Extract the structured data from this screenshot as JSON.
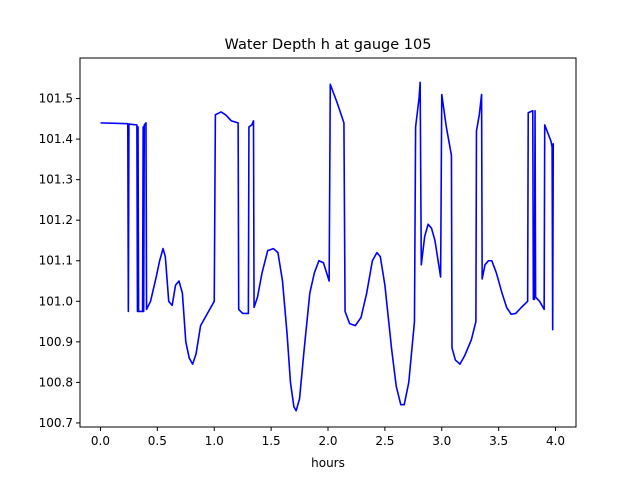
{
  "chart_data": {
    "type": "line",
    "title": "Water Depth h at gauge 105",
    "xlabel": "hours",
    "ylabel": "",
    "xlim": [
      -0.18,
      4.18
    ],
    "ylim": [
      100.69,
      101.6
    ],
    "xticks": [
      0.0,
      0.5,
      1.0,
      1.5,
      2.0,
      2.5,
      3.0,
      3.5,
      4.0
    ],
    "xtick_labels": [
      "0.0",
      "0.5",
      "1.0",
      "1.5",
      "2.0",
      "2.5",
      "3.0",
      "3.5",
      "4.0"
    ],
    "yticks": [
      100.7,
      100.8,
      100.9,
      101.0,
      101.1,
      101.2,
      101.3,
      101.4,
      101.5
    ],
    "ytick_labels": [
      "100.7",
      "100.8",
      "100.9",
      "101.0",
      "101.1",
      "101.2",
      "101.3",
      "101.4",
      "101.5"
    ],
    "grid": false,
    "series": [
      {
        "color": "#0000ff",
        "points": [
          [
            0.0,
            101.44
          ],
          [
            0.24,
            101.438
          ],
          [
            0.245,
            100.975
          ],
          [
            0.25,
            101.437
          ],
          [
            0.32,
            101.435
          ],
          [
            0.325,
            100.975
          ],
          [
            0.33,
            101.43
          ],
          [
            0.335,
            100.975
          ],
          [
            0.37,
            100.975
          ],
          [
            0.375,
            101.43
          ],
          [
            0.38,
            100.975
          ],
          [
            0.385,
            101.435
          ],
          [
            0.4,
            101.44
          ],
          [
            0.405,
            100.98
          ],
          [
            0.44,
            101.0
          ],
          [
            0.49,
            101.06
          ],
          [
            0.52,
            101.1
          ],
          [
            0.55,
            101.13
          ],
          [
            0.57,
            101.11
          ],
          [
            0.6,
            101.0
          ],
          [
            0.63,
            100.99
          ],
          [
            0.66,
            101.04
          ],
          [
            0.69,
            101.05
          ],
          [
            0.72,
            101.02
          ],
          [
            0.75,
            100.9
          ],
          [
            0.78,
            100.86
          ],
          [
            0.81,
            100.845
          ],
          [
            0.84,
            100.87
          ],
          [
            0.88,
            100.94
          ],
          [
            0.93,
            100.965
          ],
          [
            1.0,
            101.0
          ],
          [
            1.01,
            101.46
          ],
          [
            1.06,
            101.467
          ],
          [
            1.1,
            101.46
          ],
          [
            1.15,
            101.445
          ],
          [
            1.21,
            101.44
          ],
          [
            1.215,
            100.98
          ],
          [
            1.25,
            100.97
          ],
          [
            1.3,
            100.97
          ],
          [
            1.305,
            101.43
          ],
          [
            1.33,
            101.435
          ],
          [
            1.345,
            101.445
          ],
          [
            1.35,
            100.985
          ],
          [
            1.38,
            101.01
          ],
          [
            1.42,
            101.07
          ],
          [
            1.47,
            101.125
          ],
          [
            1.52,
            101.13
          ],
          [
            1.56,
            101.12
          ],
          [
            1.6,
            101.05
          ],
          [
            1.64,
            100.92
          ],
          [
            1.67,
            100.8
          ],
          [
            1.7,
            100.74
          ],
          [
            1.72,
            100.73
          ],
          [
            1.75,
            100.76
          ],
          [
            1.79,
            100.88
          ],
          [
            1.84,
            101.02
          ],
          [
            1.88,
            101.07
          ],
          [
            1.92,
            101.1
          ],
          [
            1.96,
            101.095
          ],
          [
            2.01,
            101.05
          ],
          [
            2.02,
            101.535
          ],
          [
            2.08,
            101.49
          ],
          [
            2.14,
            101.44
          ],
          [
            2.15,
            100.975
          ],
          [
            2.19,
            100.945
          ],
          [
            2.24,
            100.94
          ],
          [
            2.29,
            100.96
          ],
          [
            2.34,
            101.02
          ],
          [
            2.39,
            101.1
          ],
          [
            2.43,
            101.12
          ],
          [
            2.46,
            101.11
          ],
          [
            2.5,
            101.04
          ],
          [
            2.56,
            100.88
          ],
          [
            2.6,
            100.79
          ],
          [
            2.64,
            100.745
          ],
          [
            2.67,
            100.745
          ],
          [
            2.71,
            100.8
          ],
          [
            2.76,
            100.95
          ],
          [
            2.77,
            101.43
          ],
          [
            2.8,
            101.5
          ],
          [
            2.81,
            101.54
          ],
          [
            2.82,
            101.09
          ],
          [
            2.85,
            101.16
          ],
          [
            2.88,
            101.19
          ],
          [
            2.91,
            101.18
          ],
          [
            2.94,
            101.15
          ],
          [
            2.99,
            101.06
          ],
          [
            3.0,
            101.51
          ],
          [
            3.04,
            101.43
          ],
          [
            3.085,
            101.36
          ],
          [
            3.09,
            100.885
          ],
          [
            3.12,
            100.855
          ],
          [
            3.16,
            100.845
          ],
          [
            3.2,
            100.865
          ],
          [
            3.26,
            100.905
          ],
          [
            3.3,
            100.95
          ],
          [
            3.305,
            101.42
          ],
          [
            3.33,
            101.46
          ],
          [
            3.35,
            101.51
          ],
          [
            3.355,
            101.055
          ],
          [
            3.38,
            101.09
          ],
          [
            3.41,
            101.1
          ],
          [
            3.44,
            101.1
          ],
          [
            3.48,
            101.07
          ],
          [
            3.53,
            101.02
          ],
          [
            3.57,
            100.985
          ],
          [
            3.61,
            100.968
          ],
          [
            3.65,
            100.97
          ],
          [
            3.7,
            100.985
          ],
          [
            3.755,
            101.0
          ],
          [
            3.76,
            101.465
          ],
          [
            3.8,
            101.47
          ],
          [
            3.805,
            101.005
          ],
          [
            3.815,
            101.005
          ],
          [
            3.82,
            101.47
          ],
          [
            3.825,
            101.01
          ],
          [
            3.86,
            101.0
          ],
          [
            3.9,
            100.98
          ],
          [
            3.905,
            101.435
          ],
          [
            3.96,
            101.395
          ],
          [
            3.97,
            101.38
          ],
          [
            3.975,
            100.93
          ],
          [
            3.98,
            101.39
          ]
        ]
      }
    ]
  }
}
